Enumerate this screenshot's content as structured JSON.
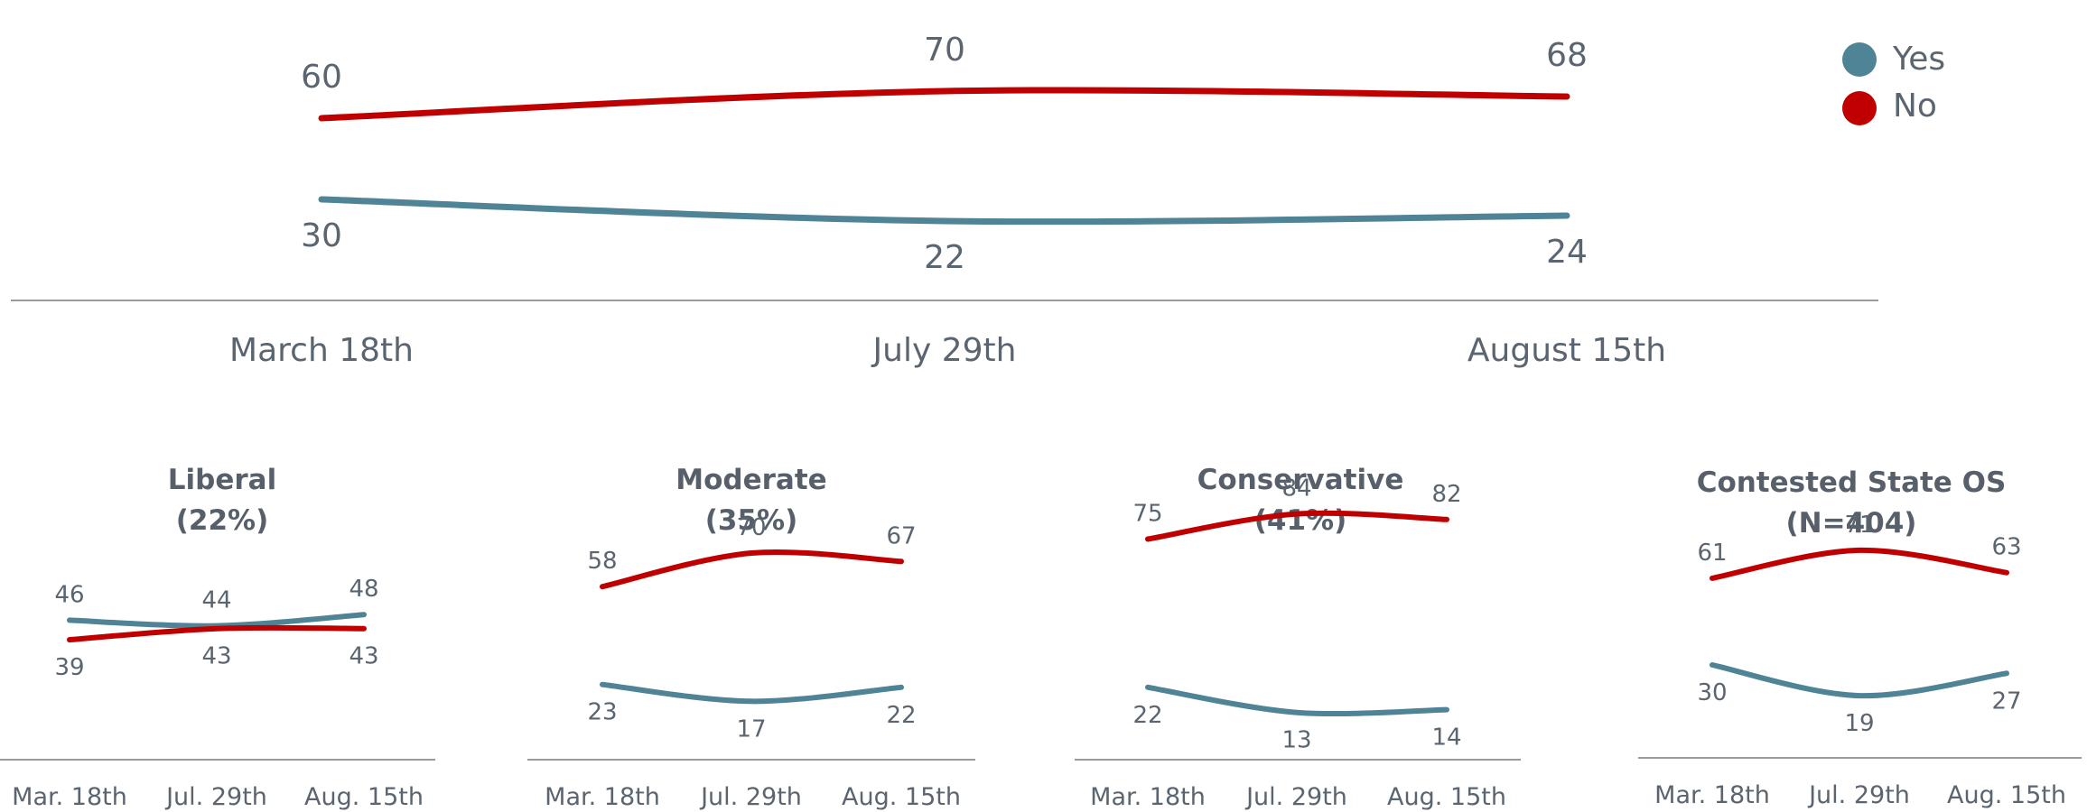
{
  "chart_data": [
    {
      "type": "line",
      "title": "",
      "xlabel": "",
      "ylabel": "",
      "categories": [
        "March 18th",
        "July 29th",
        "August 15th"
      ],
      "legend": {
        "placement": "top-right"
      },
      "series": [
        {
          "name": "Yes",
          "color": "#4f8396",
          "values": [
            30,
            22,
            24
          ]
        },
        {
          "name": "No",
          "color": "#c00000",
          "values": [
            60,
            70,
            68
          ]
        }
      ],
      "grid": false
    },
    {
      "type": "line",
      "title": "Liberal",
      "subtitle": "(22%)",
      "categories": [
        "Mar. 18th",
        "Jul. 29th",
        "Aug. 15th"
      ],
      "series": [
        {
          "name": "Yes",
          "color": "#4f8396",
          "values": [
            46,
            44,
            48
          ]
        },
        {
          "name": "No",
          "color": "#c00000",
          "values": [
            39,
            43,
            43
          ]
        }
      ]
    },
    {
      "type": "line",
      "title": "Moderate",
      "subtitle": "(35%)",
      "categories": [
        "Mar. 18th",
        "Jul. 29th",
        "Aug. 15th"
      ],
      "series": [
        {
          "name": "Yes",
          "color": "#4f8396",
          "values": [
            23,
            17,
            22
          ]
        },
        {
          "name": "No",
          "color": "#c00000",
          "values": [
            58,
            70,
            67
          ]
        }
      ]
    },
    {
      "type": "line",
      "title": "Conservative",
      "subtitle": "(41%)",
      "categories": [
        "Mar. 18th",
        "Jul. 29th",
        "Aug. 15th"
      ],
      "series": [
        {
          "name": "Yes",
          "color": "#4f8396",
          "values": [
            22,
            13,
            14
          ]
        },
        {
          "name": "No",
          "color": "#c00000",
          "values": [
            75,
            84,
            82
          ]
        }
      ]
    },
    {
      "type": "line",
      "title": "Contested State OS",
      "subtitle": "(N=404)",
      "categories": [
        "Mar. 18th",
        "Jul. 29th",
        "Aug. 15th"
      ],
      "series": [
        {
          "name": "Yes",
          "color": "#4f8396",
          "values": [
            30,
            19,
            27
          ]
        },
        {
          "name": "No",
          "color": "#c00000",
          "values": [
            61,
            71,
            63
          ]
        }
      ]
    }
  ]
}
